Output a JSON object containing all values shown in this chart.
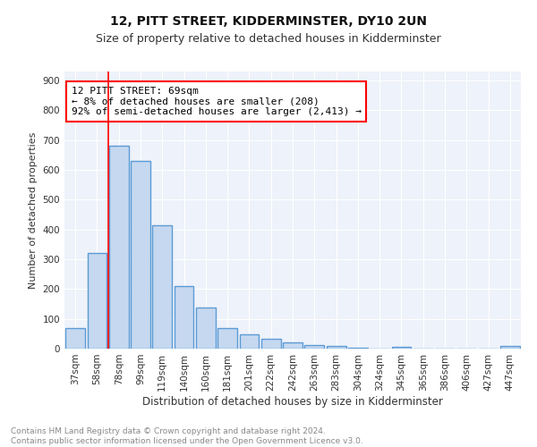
{
  "title1": "12, PITT STREET, KIDDERMINSTER, DY10 2UN",
  "title2": "Size of property relative to detached houses in Kidderminster",
  "xlabel": "Distribution of detached houses by size in Kidderminster",
  "ylabel": "Number of detached properties",
  "categories": [
    "37sqm",
    "58sqm",
    "78sqm",
    "99sqm",
    "119sqm",
    "140sqm",
    "160sqm",
    "181sqm",
    "201sqm",
    "222sqm",
    "242sqm",
    "263sqm",
    "283sqm",
    "304sqm",
    "324sqm",
    "345sqm",
    "365sqm",
    "386sqm",
    "406sqm",
    "427sqm",
    "447sqm"
  ],
  "values": [
    70,
    320,
    680,
    630,
    415,
    210,
    138,
    70,
    48,
    33,
    22,
    13,
    8,
    2,
    0,
    7,
    0,
    0,
    0,
    0,
    8
  ],
  "bar_color": "#c5d8f0",
  "bar_edge_color": "#5b9bd5",
  "bar_edge_width": 1.0,
  "red_line_x": 1.5,
  "annotation_box_text": "12 PITT STREET: 69sqm\n← 8% of detached houses are smaller (208)\n92% of semi-detached houses are larger (2,413) →",
  "ylim": [
    0,
    930
  ],
  "yticks": [
    0,
    100,
    200,
    300,
    400,
    500,
    600,
    700,
    800,
    900
  ],
  "footnote": "Contains HM Land Registry data © Crown copyright and database right 2024.\nContains public sector information licensed under the Open Government Licence v3.0.",
  "plot_bg_color": "#eef2fa",
  "grid_color": "#ffffff",
  "title1_fontsize": 10,
  "title2_fontsize": 9,
  "xlabel_fontsize": 8.5,
  "ylabel_fontsize": 8,
  "tick_fontsize": 7.5,
  "footnote_fontsize": 6.5
}
